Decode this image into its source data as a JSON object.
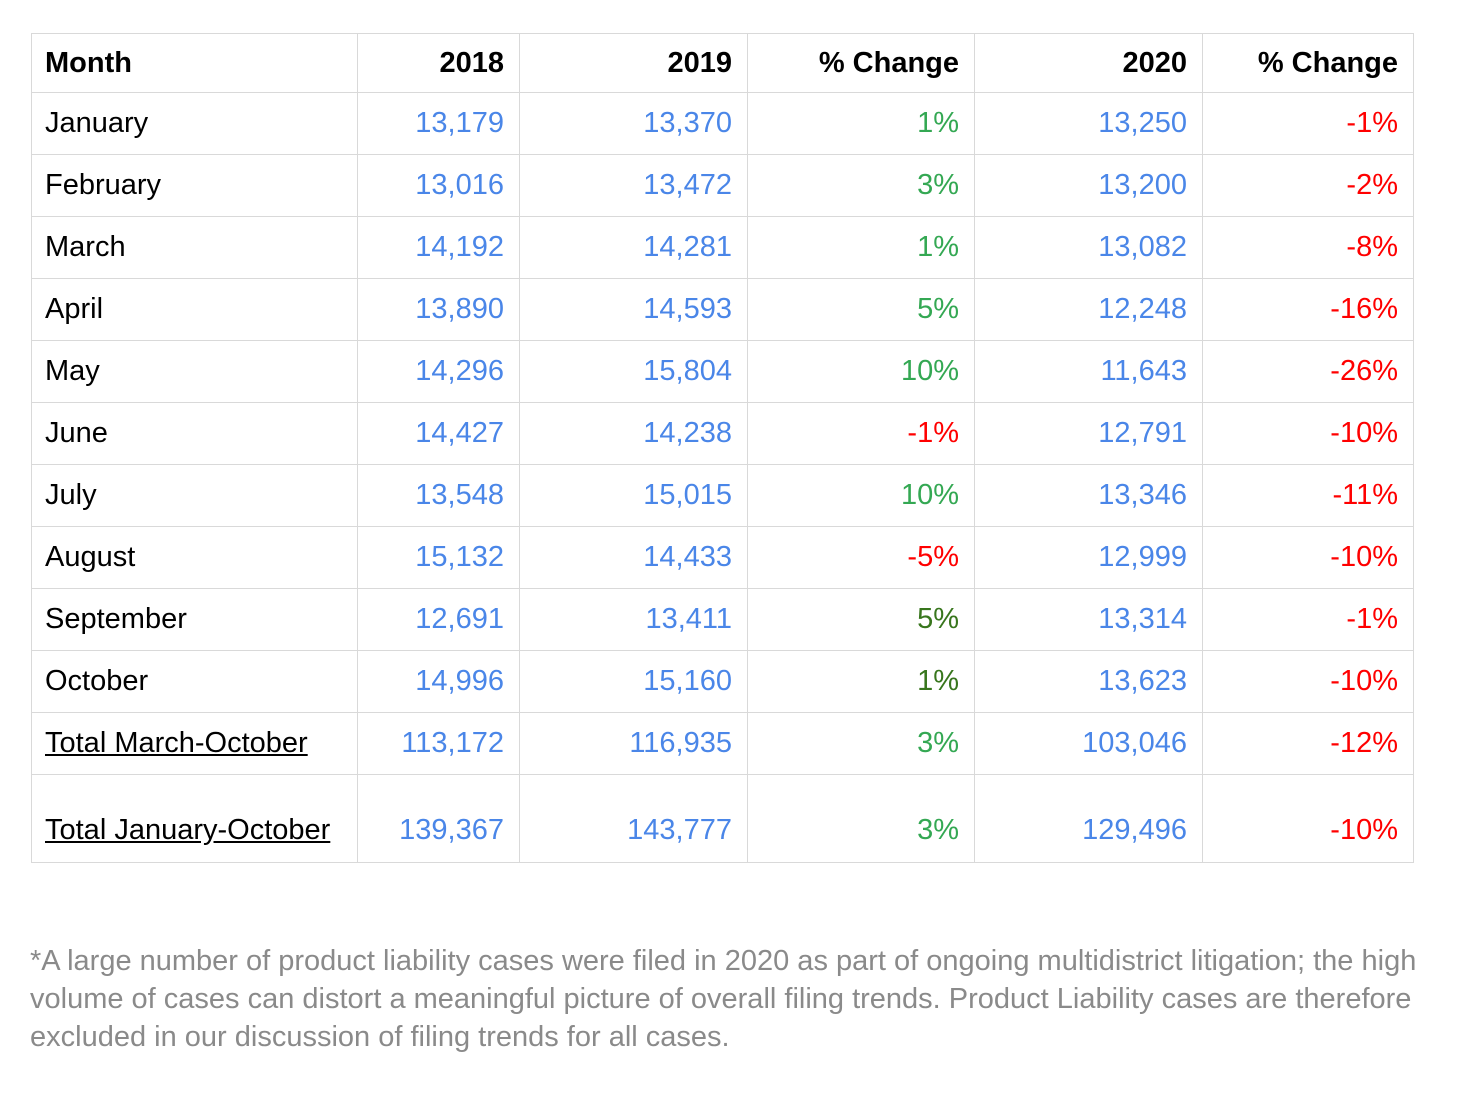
{
  "colors": {
    "value_blue": "#4a86e8",
    "positive_green": "#34a853",
    "positive_green_dark": "#38761d",
    "negative_red": "#ff0000",
    "footnote_gray": "#8a8a8a",
    "border_gray": "#d9d9d9",
    "text_black": "#000000",
    "page_bg": "#ffffff"
  },
  "table": {
    "columns": [
      {
        "label": "Month",
        "align": "left",
        "key": "label"
      },
      {
        "label": "2018",
        "align": "right",
        "key": "v2018"
      },
      {
        "label": "2019",
        "align": "right",
        "key": "v2019"
      },
      {
        "label": "% Change",
        "align": "right",
        "key": "change_2019"
      },
      {
        "label": "2020",
        "align": "right",
        "key": "v2020"
      },
      {
        "label": "% Change",
        "align": "right",
        "key": "change_2020"
      }
    ],
    "rows": [
      {
        "label": "January",
        "v2018": "13,179",
        "v2019": "13,370",
        "change_2019": "1%",
        "change_2019_color": "green",
        "v2020": "13,250",
        "change_2020": "-1%",
        "change_2020_color": "red",
        "underline": false,
        "tall": false
      },
      {
        "label": "February",
        "v2018": "13,016",
        "v2019": "13,472",
        "change_2019": "3%",
        "change_2019_color": "green",
        "v2020": "13,200",
        "change_2020": "-2%",
        "change_2020_color": "red",
        "underline": false,
        "tall": false
      },
      {
        "label": "March",
        "v2018": "14,192",
        "v2019": "14,281",
        "change_2019": "1%",
        "change_2019_color": "green",
        "v2020": "13,082",
        "change_2020": "-8%",
        "change_2020_color": "red",
        "underline": false,
        "tall": false
      },
      {
        "label": "April",
        "v2018": "13,890",
        "v2019": "14,593",
        "change_2019": "5%",
        "change_2019_color": "green",
        "v2020": "12,248",
        "change_2020": "-16%",
        "change_2020_color": "red",
        "underline": false,
        "tall": false
      },
      {
        "label": "May",
        "v2018": "14,296",
        "v2019": "15,804",
        "change_2019": "10%",
        "change_2019_color": "green",
        "v2020": "11,643",
        "change_2020": "-26%",
        "change_2020_color": "red",
        "underline": false,
        "tall": false
      },
      {
        "label": "June",
        "v2018": "14,427",
        "v2019": "14,238",
        "change_2019": "-1%",
        "change_2019_color": "red",
        "v2020": "12,791",
        "change_2020": "-10%",
        "change_2020_color": "red",
        "underline": false,
        "tall": false
      },
      {
        "label": "July",
        "v2018": "13,548",
        "v2019": "15,015",
        "change_2019": "10%",
        "change_2019_color": "green",
        "v2020": "13,346",
        "change_2020": "-11%",
        "change_2020_color": "red",
        "underline": false,
        "tall": false
      },
      {
        "label": "August",
        "v2018": "15,132",
        "v2019": "14,433",
        "change_2019": "-5%",
        "change_2019_color": "red",
        "v2020": "12,999",
        "change_2020": "-10%",
        "change_2020_color": "red",
        "underline": false,
        "tall": false
      },
      {
        "label": "September",
        "v2018": "12,691",
        "v2019": "13,411",
        "change_2019": "5%",
        "change_2019_color": "darkgreen",
        "v2020": "13,314",
        "change_2020": "-1%",
        "change_2020_color": "red",
        "underline": false,
        "tall": false
      },
      {
        "label": "October",
        "v2018": "14,996",
        "v2019": "15,160",
        "change_2019": "1%",
        "change_2019_color": "darkgreen",
        "v2020": "13,623",
        "change_2020": "-10%",
        "change_2020_color": "red",
        "underline": false,
        "tall": false
      },
      {
        "label": "Total March-October",
        "v2018": "113,172",
        "v2019": "116,935",
        "change_2019": "3%",
        "change_2019_color": "green",
        "v2020": "103,046",
        "change_2020": "-12%",
        "change_2020_color": "red",
        "underline": true,
        "tall": false
      },
      {
        "label": "Total January-October",
        "v2018": "139,367",
        "v2019": "143,777",
        "change_2019": "3%",
        "change_2019_color": "green",
        "v2020": "129,496",
        "change_2020": "-10%",
        "change_2020_color": "red",
        "underline": true,
        "tall": true
      }
    ]
  },
  "footnote": "*A large number of product liability cases were filed in 2020 as part of ongoing multidistrict litigation; the high volume of cases can distort a meaningful picture of overall filing trends. Product Liability cases are therefore excluded in our discussion of filing trends for all cases."
}
